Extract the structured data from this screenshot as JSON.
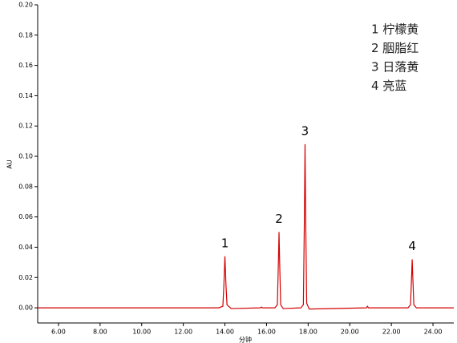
{
  "chart_data": {
    "type": "line",
    "y_label": "AU",
    "x_label": "分钟",
    "series": [
      {
        "color": "#d40000",
        "x": [
          5,
          8,
          11,
          13.7,
          13.9,
          13.95,
          14.0,
          14.05,
          14.1,
          14.3,
          15.7,
          15.75,
          15.8,
          16.4,
          16.52,
          16.57,
          16.6,
          16.63,
          16.68,
          16.8,
          17.65,
          17.77,
          17.82,
          17.85,
          17.88,
          17.93,
          18.05,
          20.8,
          20.85,
          20.9,
          22.8,
          22.92,
          22.97,
          23.0,
          23.03,
          23.08,
          23.2,
          25
        ],
        "values": [
          0,
          0,
          0,
          0,
          0.001,
          0.015,
          0.034,
          0.015,
          0.002,
          -0.0005,
          0,
          0.0005,
          0,
          0,
          0.002,
          0.03,
          0.05,
          0.03,
          0.002,
          -0.0005,
          0,
          0.002,
          0.06,
          0.108,
          0.06,
          0.003,
          -0.0008,
          0,
          0.001,
          0,
          0,
          0.002,
          0.02,
          0.032,
          0.02,
          0.002,
          0,
          0
        ]
      }
    ],
    "annotations": [
      "1",
      "2",
      "3",
      "4"
    ],
    "legend_text": [
      "1  柠檬黄",
      "2  胭脂红",
      "3  日落黄",
      "4  亮蓝"
    ],
    "xlim": [
      5,
      25
    ],
    "xticks": [
      {
        "value": 6,
        "label": "6.00"
      },
      {
        "value": 8,
        "label": "8.00"
      },
      {
        "value": 10,
        "label": "10.00"
      },
      {
        "value": 12,
        "label": "12.00"
      },
      {
        "value": 14,
        "label": "14.00"
      },
      {
        "value": 16,
        "label": "16.00"
      },
      {
        "value": 18,
        "label": "18.00"
      },
      {
        "value": 20,
        "label": "20.00"
      },
      {
        "value": 22,
        "label": "22.00"
      },
      {
        "value": 24,
        "label": "24.00"
      }
    ],
    "ylim": [
      -0.01,
      0.2
    ],
    "yticks": [
      {
        "value": 0,
        "label": "0.00"
      },
      {
        "value": 0.02,
        "label": "0.02"
      },
      {
        "value": 0.04,
        "label": "0.04"
      },
      {
        "value": 0.06,
        "label": "0.06"
      },
      {
        "value": 0.08,
        "label": "0.08"
      },
      {
        "value": 0.1,
        "label": "0.10"
      },
      {
        "value": 0.12,
        "label": "0.12"
      },
      {
        "value": 0.14,
        "label": "0.14"
      },
      {
        "value": 0.16,
        "label": "0.16"
      },
      {
        "value": 0.18,
        "label": "0.18"
      },
      {
        "value": 0.2,
        "label": "0.20"
      }
    ]
  }
}
